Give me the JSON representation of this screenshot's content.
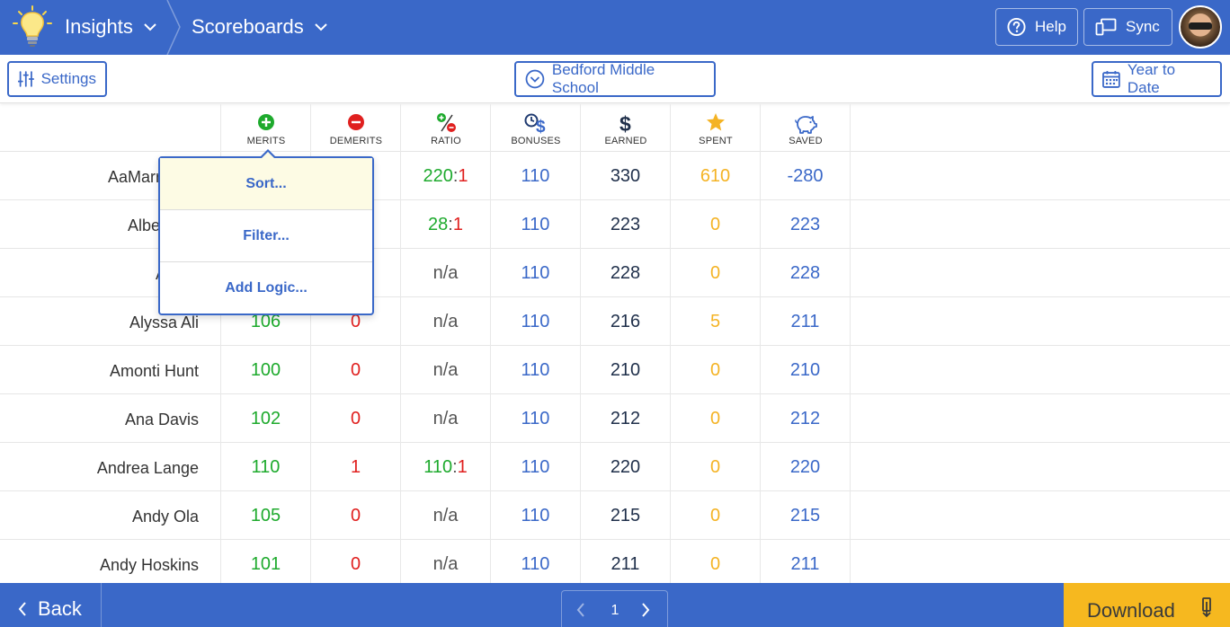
{
  "header": {
    "app_title": "Insights",
    "section_title": "Scoreboards",
    "help_label": "Help",
    "sync_label": "Sync"
  },
  "toolbar": {
    "settings_label": "Settings",
    "school_label": "Bedford Middle School",
    "date_label": "Year to Date"
  },
  "columns": [
    "MERITS",
    "DEMERITS",
    "RATIO",
    "BONUSES",
    "EARNED",
    "SPENT",
    "SAVED"
  ],
  "rows": [
    {
      "name": "AaMarrah W",
      "merits": "",
      "demerits": "",
      "ratio_a": "220",
      "ratio_b": "1",
      "bonuses": "110",
      "earned": "330",
      "spent": "610",
      "saved": "-280"
    },
    {
      "name": "Alberto W",
      "merits": "",
      "demerits": "",
      "ratio_a": "28",
      "ratio_b": "1",
      "bonuses": "110",
      "earned": "223",
      "spent": "0",
      "saved": "223"
    },
    {
      "name": "Alexis",
      "merits": "",
      "demerits": "",
      "ratio_na": "n/a",
      "bonuses": "110",
      "earned": "228",
      "spent": "0",
      "saved": "228"
    },
    {
      "name": "Alyssa Ali",
      "merits": "106",
      "demerits": "0",
      "ratio_na": "n/a",
      "bonuses": "110",
      "earned": "216",
      "spent": "5",
      "saved": "211"
    },
    {
      "name": "Amonti Hunt",
      "merits": "100",
      "demerits": "0",
      "ratio_na": "n/a",
      "bonuses": "110",
      "earned": "210",
      "spent": "0",
      "saved": "210"
    },
    {
      "name": "Ana Davis",
      "merits": "102",
      "demerits": "0",
      "ratio_na": "n/a",
      "bonuses": "110",
      "earned": "212",
      "spent": "0",
      "saved": "212"
    },
    {
      "name": "Andrea Lange",
      "merits": "110",
      "demerits": "1",
      "ratio_a": "110",
      "ratio_b": "1",
      "bonuses": "110",
      "earned": "220",
      "spent": "0",
      "saved": "220"
    },
    {
      "name": "Andy Ola",
      "merits": "105",
      "demerits": "0",
      "ratio_na": "n/a",
      "bonuses": "110",
      "earned": "215",
      "spent": "0",
      "saved": "215"
    },
    {
      "name": "Andy Hoskins",
      "merits": "101",
      "demerits": "0",
      "ratio_na": "n/a",
      "bonuses": "110",
      "earned": "211",
      "spent": "0",
      "saved": "211"
    }
  ],
  "popup_menu": {
    "items": [
      "Sort...",
      "Filter...",
      "Add Logic..."
    ]
  },
  "footer": {
    "back_label": "Back",
    "page_number": "1",
    "download_label": "Download"
  },
  "colors": {
    "brand_blue": "#3a68c8",
    "merit_green": "#1eaa2d",
    "demerit_red": "#e0201f",
    "spent_orange": "#f4b324",
    "download_yellow": "#f6b81f"
  },
  "icons": {
    "logo": "lightbulb-icon",
    "merits": "plus-circle-icon",
    "demerits": "minus-circle-icon",
    "ratio": "ratio-icon",
    "bonuses": "clock-dollar-icon",
    "earned": "dollar-icon",
    "spent": "star-icon",
    "saved": "piggy-bank-icon"
  }
}
